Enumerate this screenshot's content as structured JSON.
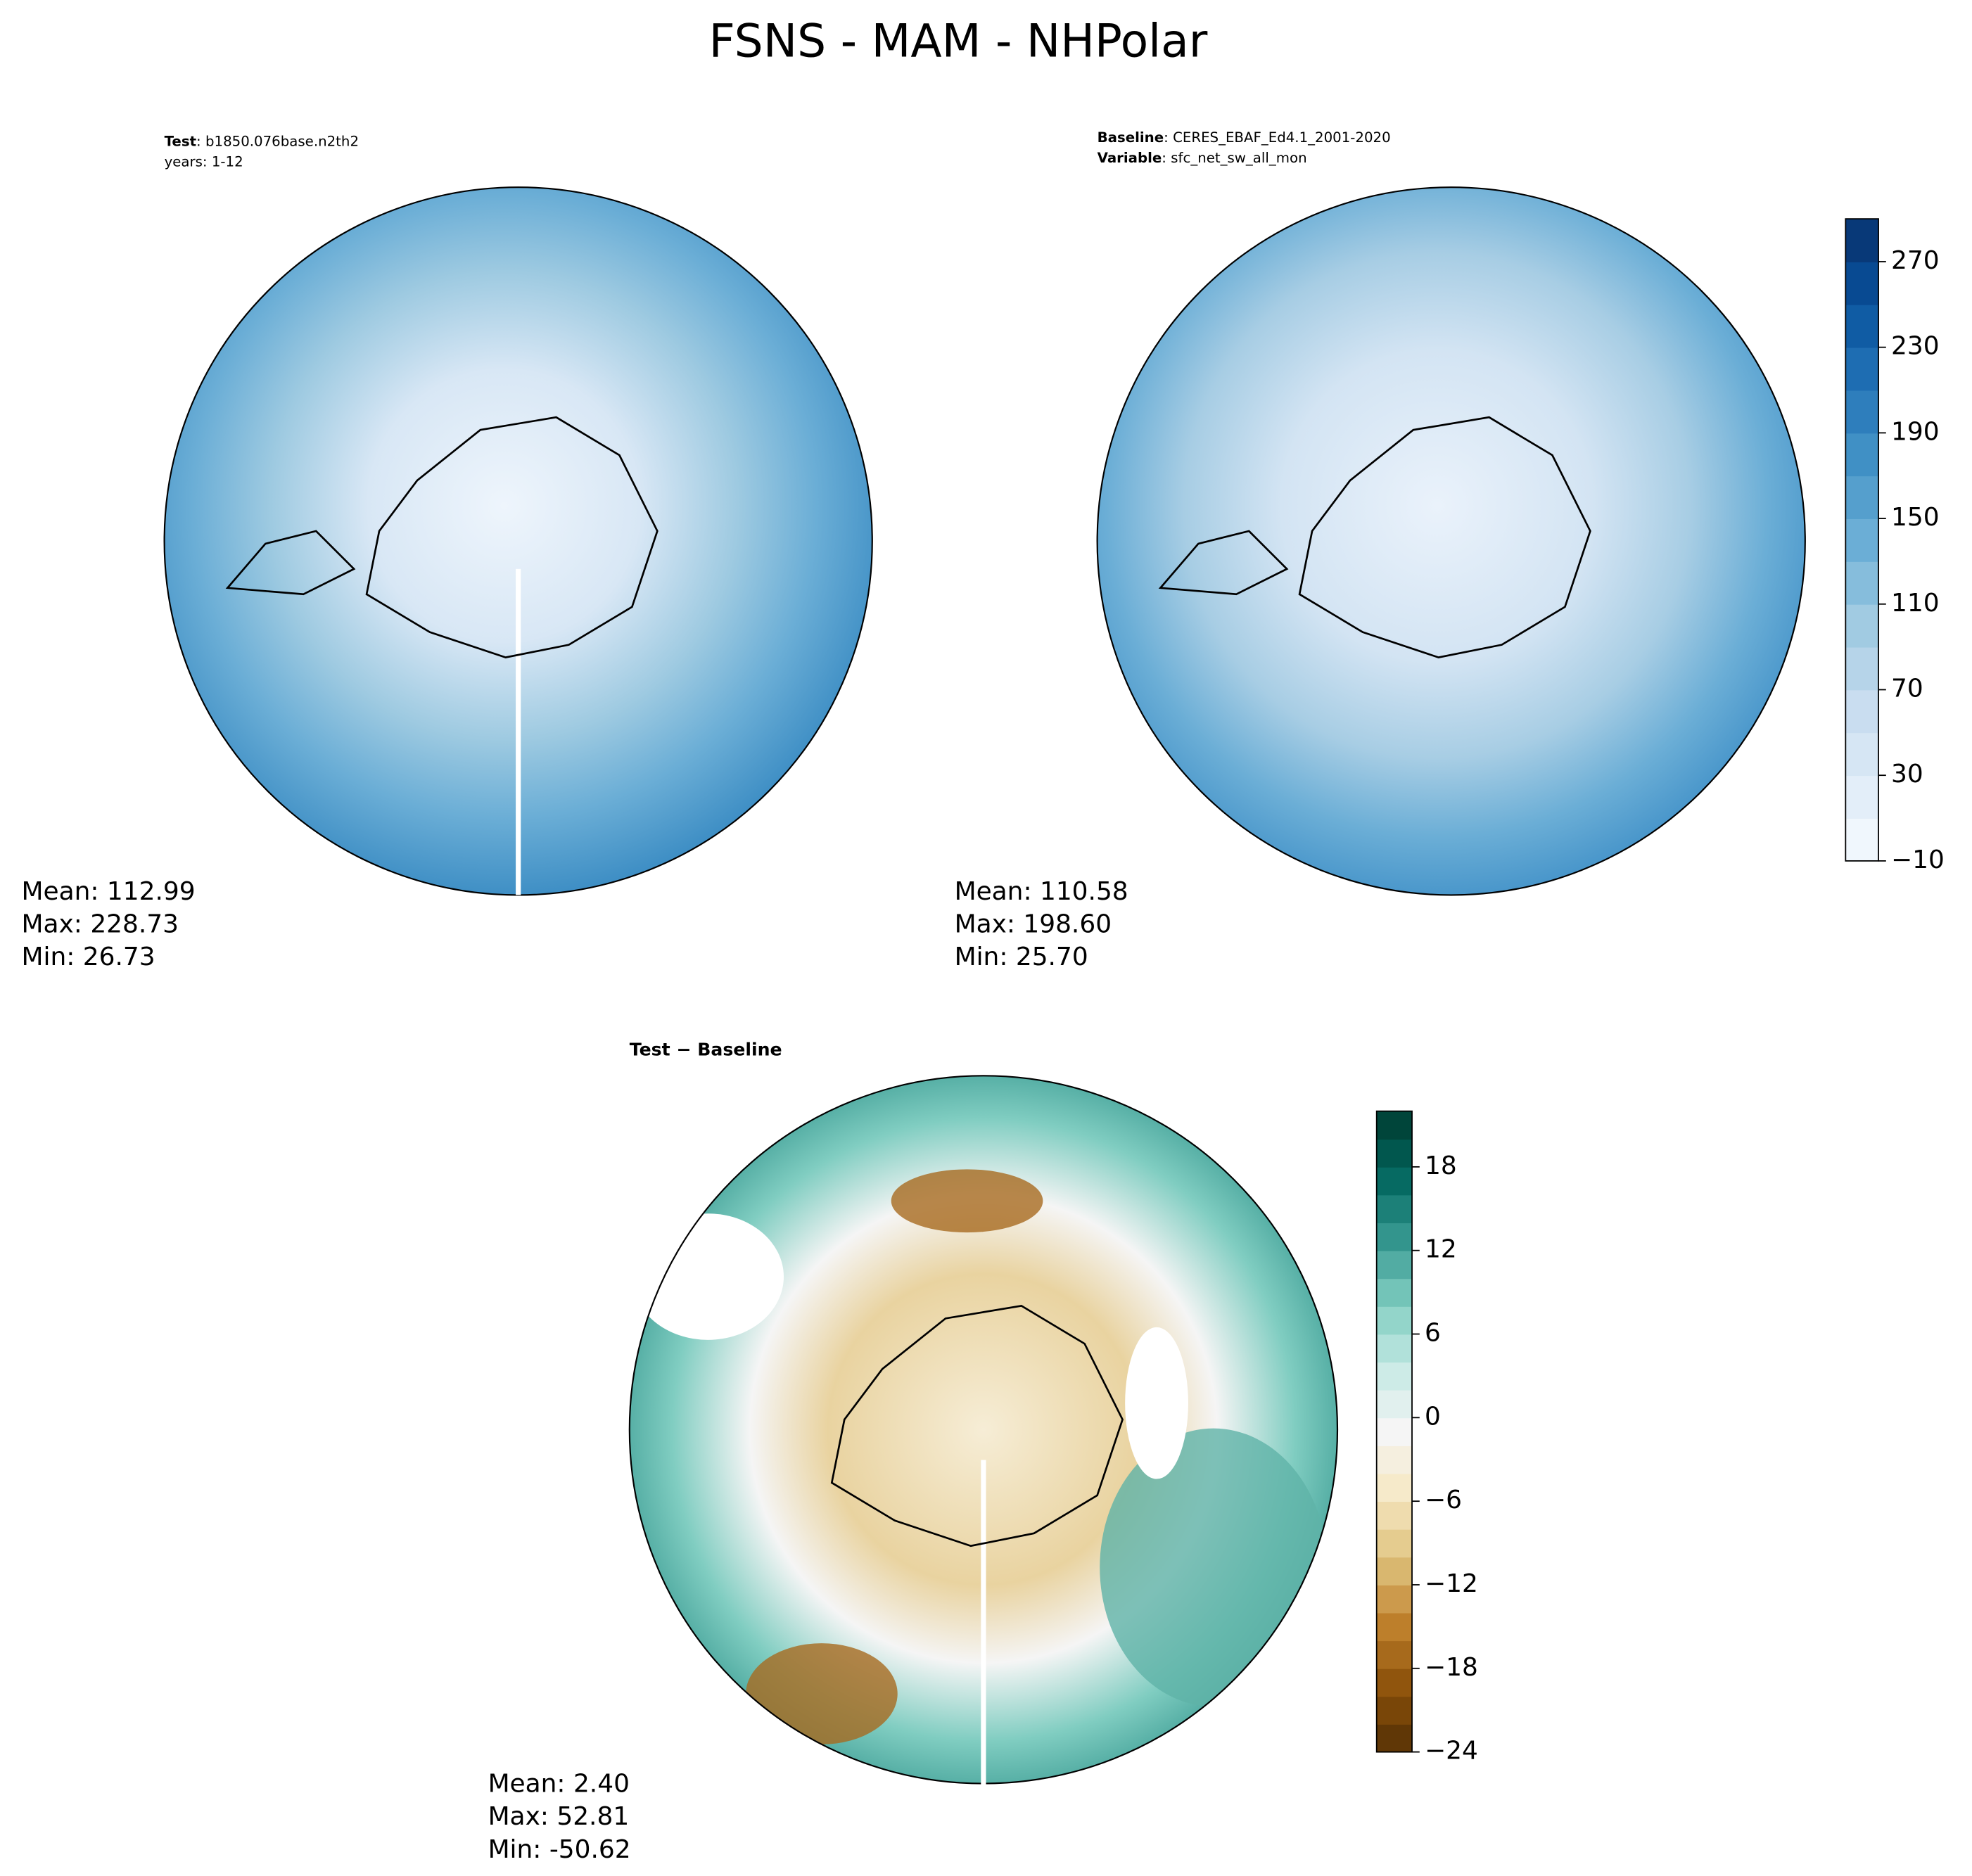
{
  "title": "FSNS - MAM - NHPolar",
  "panels": [
    {
      "header": [
        {
          "bold": "Test",
          "rest": ": b1850.076base.n2th2"
        },
        {
          "rest": "years: 1-12"
        }
      ],
      "stats": [
        "Mean: 112.99",
        "Max: 228.73",
        "Min: 26.73"
      ]
    },
    {
      "header": [
        {
          "bold": "Baseline",
          "rest": ": CERES_EBAF_Ed4.1_2001-2020"
        },
        {
          "bold": "Variable",
          "rest": ": sfc_net_sw_all_mon"
        }
      ],
      "stats": [
        "Mean: 110.58",
        "Max: 198.60",
        "Min: 25.70"
      ]
    },
    {
      "header": [
        {
          "bold": "Test − Baseline"
        }
      ],
      "stats": [
        "Mean:  2.40",
        "Max: 52.81",
        "Min: -50.62"
      ]
    }
  ],
  "colorbars": [
    {
      "lim": [
        -10,
        290
      ],
      "ticks": [
        {
          "value": -10,
          "label": "−10"
        },
        30,
        70,
        110,
        150,
        190,
        230,
        270
      ],
      "colors": [
        "#f7fbff",
        "#deebf7",
        "#c6dbef",
        "#9ecae1",
        "#6baed6",
        "#4292c6",
        "#2171b5",
        "#08519c",
        "#08306b"
      ]
    },
    {
      "lim": [
        -24,
        22
      ],
      "ticks": [
        {
          "value": -24,
          "label": "−24"
        },
        {
          "value": -18,
          "label": "−18"
        },
        {
          "value": -12,
          "label": "−12"
        },
        {
          "value": -6,
          "label": "−6"
        },
        0,
        6,
        12,
        18
      ],
      "colors": [
        "#543005",
        "#8c510a",
        "#bf812d",
        "#dfc27d",
        "#f6e8c3",
        "#f5f5f5",
        "#c7eae5",
        "#80cdc1",
        "#35978f",
        "#01665e",
        "#003c30"
      ]
    }
  ]
}
